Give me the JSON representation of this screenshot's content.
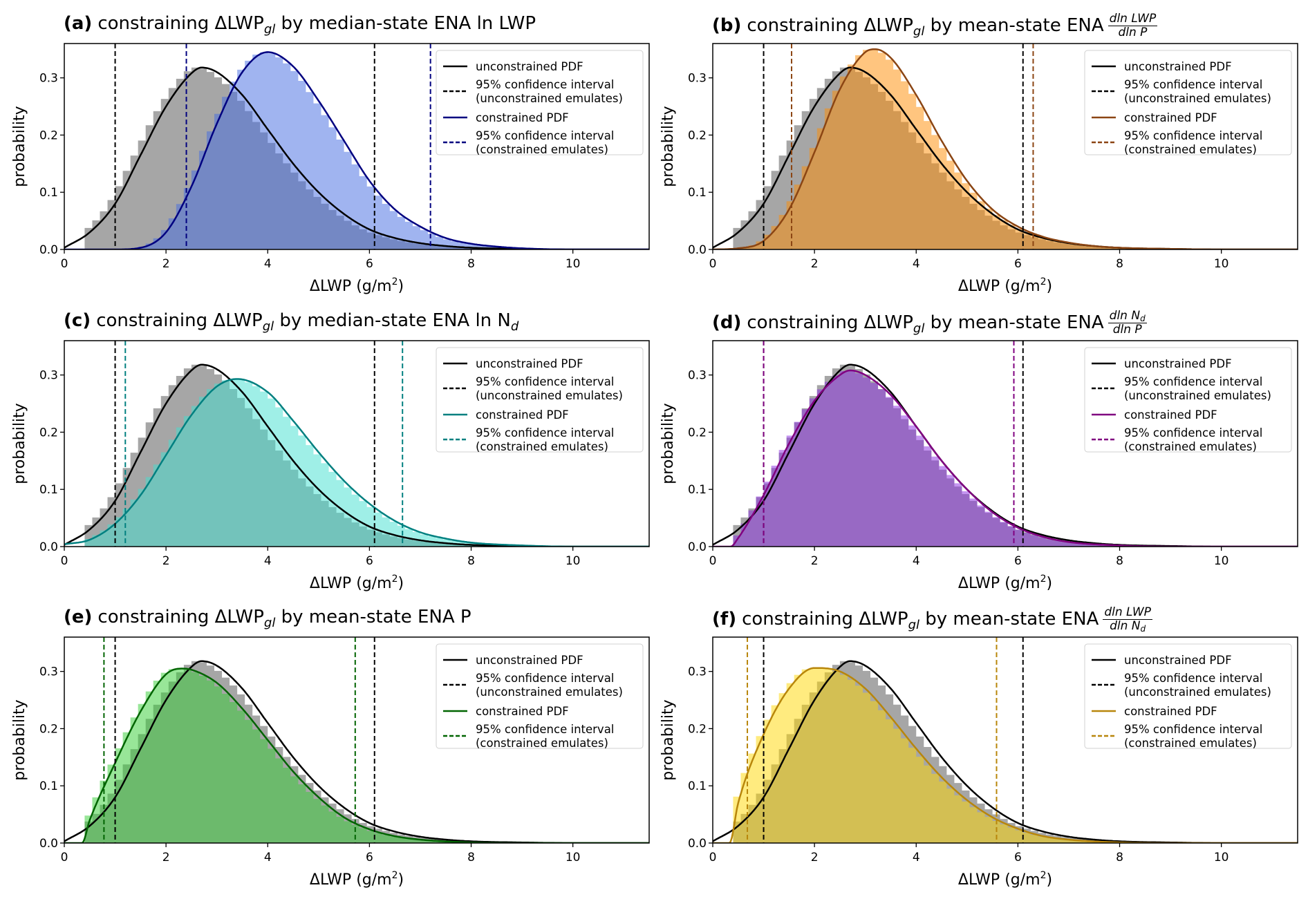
{
  "chart_data": [
    {
      "type": "histogram+line",
      "shared": {
        "xlabel": "ΔLWP (g/m",
        "xlabel_sup": "2",
        "xlabel_end": ")",
        "ylabel": "probability",
        "xlim": [
          0,
          11.5
        ],
        "ylim": [
          0,
          0.36
        ],
        "x_ticks": [
          "0",
          "2",
          "4",
          "6",
          "8",
          "10"
        ],
        "y_ticks": [
          "0.0",
          "0.1",
          "0.2",
          "0.3"
        ],
        "grid": false,
        "legend_placement": "upper right",
        "legend": {
          "unconstrained_pdf": "unconstrained PDF",
          "ci_unconstrained_1": "95% confidence interval",
          "ci_unconstrained_2": "(unconstrained emulates)",
          "constrained_pdf": "constrained PDF",
          "ci_constrained_1": "95% confidence interval",
          "ci_constrained_2": "(constrained emulates)"
        },
        "unconstrained_hist_color": "#a6a6a6",
        "unconstrained_line_color": "#000000",
        "unconstrained_ci": [
          1.0,
          6.1
        ],
        "unconstrained_pdf": {
          "x": [
            0,
            0.5,
            1,
            1.5,
            2,
            2.5,
            2.7,
            3,
            3.5,
            4,
            4.5,
            5,
            5.5,
            6,
            6.5,
            7,
            7.5,
            8,
            9,
            10,
            11.5
          ],
          "y": [
            0.003,
            0.03,
            0.08,
            0.165,
            0.25,
            0.308,
            0.318,
            0.31,
            0.27,
            0.21,
            0.15,
            0.1,
            0.062,
            0.035,
            0.02,
            0.011,
            0.006,
            0.003,
            0.001,
            0,
            0
          ]
        }
      },
      "panels": [
        {
          "label": "(a)",
          "title_pre": "constraining ΔLWP",
          "title_sub": "gl",
          "title_post": " by median-state ENA ln LWP",
          "title_post_sub": "",
          "frac": null,
          "line_color": "#000080",
          "hist_color": "#4169e1",
          "constrained_ci": [
            2.4,
            7.2
          ],
          "constrained_pdf": {
            "x": [
              0,
              1,
              1.5,
              2,
              2.5,
              3,
              3.5,
              4,
              4.5,
              5,
              5.5,
              6,
              6.5,
              7,
              7.5,
              8,
              8.5,
              9,
              10,
              11.5
            ],
            "y": [
              0,
              0,
              0.003,
              0.03,
              0.11,
              0.22,
              0.31,
              0.345,
              0.32,
              0.26,
              0.19,
              0.12,
              0.07,
              0.04,
              0.02,
              0.01,
              0.005,
              0.002,
              0,
              0
            ]
          }
        },
        {
          "label": "(b)",
          "title_pre": "constraining ΔLWP",
          "title_sub": "gl",
          "title_post": " by mean-state ENA",
          "title_post_sub": "",
          "frac": {
            "num": "dln LWP",
            "num_sub": "",
            "den": "dln P",
            "den_sub": ""
          },
          "line_color": "#8b4513",
          "hist_color": "#ff8c00",
          "constrained_ci": [
            1.55,
            6.3
          ],
          "constrained_pdf": {
            "x": [
              0,
              0.5,
              1,
              1.5,
              2,
              2.5,
              3,
              3.2,
              3.5,
              4,
              4.5,
              5,
              5.5,
              6,
              6.5,
              7,
              7.5,
              8,
              9,
              10,
              11.5
            ],
            "y": [
              0,
              0.002,
              0.015,
              0.07,
              0.17,
              0.28,
              0.345,
              0.35,
              0.335,
              0.27,
              0.19,
              0.12,
              0.07,
              0.04,
              0.022,
              0.012,
              0.006,
              0.003,
              0.001,
              0,
              0
            ]
          }
        },
        {
          "label": "(c)",
          "title_pre": "constraining ΔLWP",
          "title_sub": "gl",
          "title_post": " by median-state ENA ln N",
          "title_post_sub": "d",
          "frac": null,
          "line_color": "#008080",
          "hist_color": "#40e0d0",
          "constrained_ci": [
            1.2,
            6.65
          ],
          "constrained_pdf": {
            "x": [
              0,
              0.5,
              1,
              1.5,
              2,
              2.5,
              3,
              3.4,
              4,
              4.5,
              5,
              5.5,
              6,
              6.5,
              7,
              7.5,
              8,
              9,
              10,
              11.5
            ],
            "y": [
              0.004,
              0.012,
              0.04,
              0.09,
              0.16,
              0.23,
              0.28,
              0.293,
              0.27,
              0.22,
              0.165,
              0.115,
              0.075,
              0.045,
              0.025,
              0.014,
              0.007,
              0.002,
              0,
              0
            ]
          }
        },
        {
          "label": "(d)",
          "title_pre": "constraining ΔLWP",
          "title_sub": "gl",
          "title_post": " by mean-state ENA",
          "title_post_sub": "",
          "frac": {
            "num": "dln N",
            "num_sub": "d",
            "den": "dln P",
            "den_sub": ""
          },
          "line_color": "#800080",
          "hist_color": "#8a2be2",
          "constrained_ci": [
            1.0,
            5.92
          ],
          "constrained_pdf": {
            "x": [
              0,
              0.35,
              0.5,
              1,
              1.5,
              2,
              2.5,
              2.7,
              3,
              3.5,
              4,
              4.5,
              5,
              5.5,
              6,
              6.5,
              7,
              8,
              9,
              11.5
            ],
            "y": [
              0,
              0,
              0.015,
              0.09,
              0.18,
              0.255,
              0.3,
              0.308,
              0.3,
              0.265,
              0.21,
              0.15,
              0.1,
              0.06,
              0.033,
              0.017,
              0.008,
              0.002,
              0,
              0
            ]
          }
        },
        {
          "label": "(e)",
          "title_pre": "constraining ΔLWP",
          "title_sub": "gl",
          "title_post": " by mean-state ENA P",
          "title_post_sub": "",
          "frac": null,
          "line_color": "#006400",
          "hist_color": "#32cd32",
          "constrained_ci": [
            0.78,
            5.72
          ],
          "constrained_pdf": {
            "x": [
              0,
              0.35,
              0.5,
              1,
              1.5,
              2,
              2.3,
              2.5,
              3,
              3.5,
              4,
              4.5,
              5,
              5.5,
              6,
              6.5,
              7,
              8,
              9,
              11.5
            ],
            "y": [
              0,
              0,
              0.04,
              0.14,
              0.23,
              0.295,
              0.305,
              0.303,
              0.28,
              0.235,
              0.18,
              0.125,
              0.08,
              0.045,
              0.024,
              0.012,
              0.006,
              0.001,
              0,
              0
            ]
          }
        },
        {
          "label": "(f)",
          "title_pre": "constraining ΔLWP",
          "title_sub": "gl",
          "title_post": " by mean-state ENA",
          "title_post_sub": "",
          "frac": {
            "num": "dln LWP",
            "num_sub": "",
            "den": "dln N",
            "den_sub": "d"
          },
          "line_color": "#b8860b",
          "hist_color": "#ffd700",
          "constrained_ci": [
            0.68,
            5.58
          ],
          "constrained_pdf": {
            "x": [
              0,
              0.33,
              0.5,
              1,
              1.5,
              2,
              2.5,
              3,
              3.5,
              4,
              4.5,
              5,
              5.5,
              6,
              6.5,
              7,
              8,
              9,
              11.5
            ],
            "y": [
              0,
              0,
              0.07,
              0.19,
              0.27,
              0.306,
              0.3,
              0.27,
              0.22,
              0.165,
              0.115,
              0.075,
              0.045,
              0.025,
              0.012,
              0.006,
              0.001,
              0,
              0
            ]
          }
        }
      ]
    }
  ]
}
